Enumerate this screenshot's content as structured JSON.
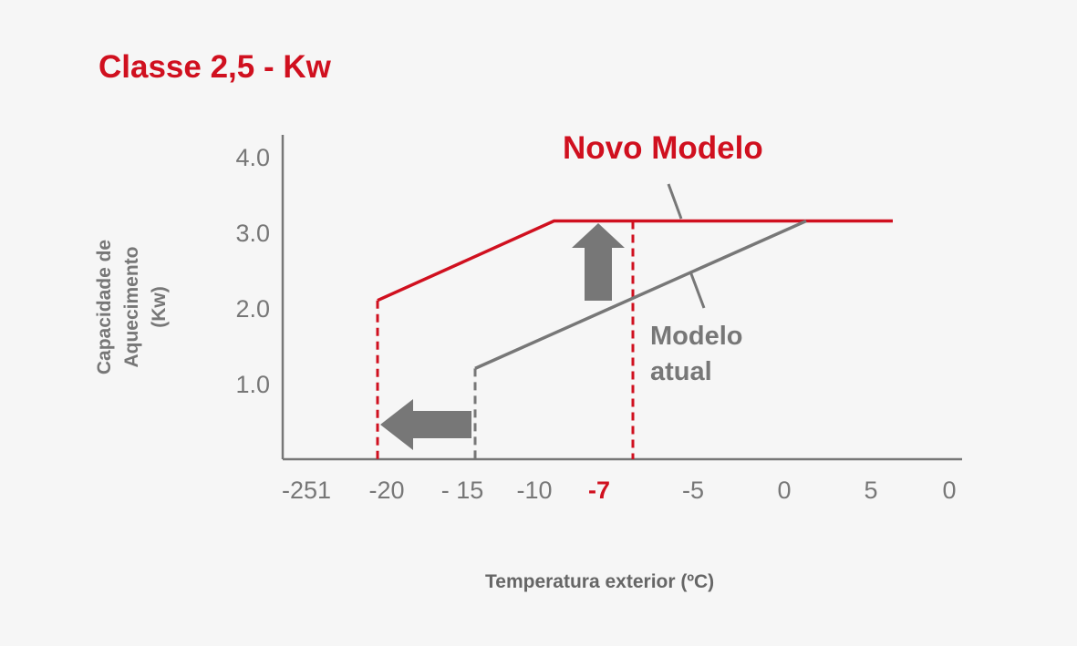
{
  "chart_data": {
    "type": "line",
    "title": "Classe 2,5 - Kw",
    "xlabel": "Temperatura exterior (ºC)",
    "ylabel_lines": [
      "Capacidade de",
      "Aquecimento",
      "(Kw)"
    ],
    "x_tick_labels": [
      "-251",
      "-20",
      "- 15",
      "-10",
      "-7",
      "-5",
      "0",
      "5",
      "0"
    ],
    "highlighted_x_tick": "-7",
    "y_tick_labels": [
      "1.0",
      "2.0",
      "3.0",
      "4.0"
    ],
    "ylim": [
      0,
      4.3
    ],
    "grid": false,
    "series": [
      {
        "name": "Novo Modelo",
        "color": "#d0101f",
        "points": [
          {
            "x": -20,
            "y": 2.1
          },
          {
            "x": -11,
            "y": 3.15
          },
          {
            "x": 8,
            "y": 3.15
          }
        ]
      },
      {
        "name": "Modelo atual",
        "color": "#777777",
        "points": [
          {
            "x": -15,
            "y": 1.2
          },
          {
            "x": 3,
            "y": 3.15
          }
        ]
      }
    ],
    "annotations": {
      "new_model_label": "Novo Modelo",
      "current_model_label": [
        "Modelo",
        "atual"
      ],
      "dashed_verticals": [
        {
          "x": -20,
          "color": "#d0101f"
        },
        {
          "x": -15,
          "color": "#777777"
        },
        {
          "x": -7,
          "color": "#d0101f"
        }
      ],
      "arrows": [
        {
          "direction": "up",
          "meaning": "capacity increase",
          "at_x": -9
        },
        {
          "direction": "left",
          "meaning": "lower operating temperature",
          "at_y": 0.4
        }
      ]
    }
  }
}
